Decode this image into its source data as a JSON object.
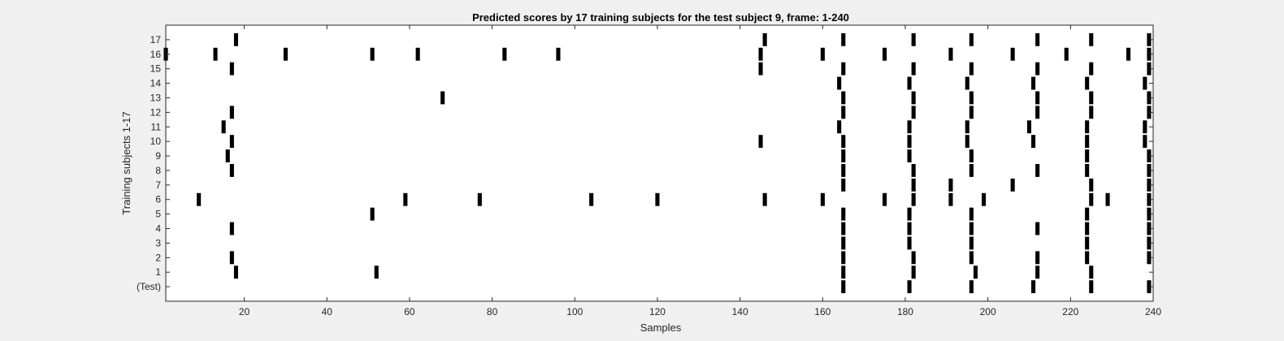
{
  "chart_data": {
    "type": "heatmap",
    "title": "Predicted scores by 17 training subjects for the test subject 9, frame: 1-240",
    "xlabel": "Samples",
    "ylabel": "Training subjects 1-17",
    "xlim": [
      1,
      240
    ],
    "xticks": [
      20,
      40,
      60,
      80,
      100,
      120,
      140,
      160,
      180,
      200,
      220,
      240
    ],
    "ytick_labels": [
      "(Test)",
      "1",
      "2",
      "3",
      "4",
      "5",
      "6",
      "7",
      "8",
      "9",
      "10",
      "11",
      "12",
      "13",
      "14",
      "15",
      "16",
      "17"
    ],
    "grid": false,
    "colormap": {
      "marked": "#000000",
      "unmarked": "#ffffff"
    },
    "rows": [
      {
        "label": "(Test)",
        "samples": [
          165,
          181,
          196,
          211,
          225,
          239
        ]
      },
      {
        "label": "1",
        "samples": [
          18,
          52,
          165,
          182,
          197,
          212,
          225
        ]
      },
      {
        "label": "2",
        "samples": [
          17,
          165,
          182,
          196,
          212,
          224,
          239
        ]
      },
      {
        "label": "3",
        "samples": [
          165,
          181,
          196,
          224,
          239
        ]
      },
      {
        "label": "4",
        "samples": [
          17,
          165,
          181,
          196,
          212,
          224,
          239
        ]
      },
      {
        "label": "5",
        "samples": [
          51,
          165,
          181,
          196,
          224,
          239
        ]
      },
      {
        "label": "6",
        "samples": [
          9,
          59,
          77,
          104,
          120,
          146,
          160,
          175,
          182,
          191,
          199,
          225,
          229,
          239
        ]
      },
      {
        "label": "7",
        "samples": [
          165,
          182,
          191,
          206,
          225,
          239
        ]
      },
      {
        "label": "8",
        "samples": [
          17,
          165,
          182,
          196,
          212,
          224,
          239
        ]
      },
      {
        "label": "9",
        "samples": [
          16,
          165,
          181,
          196,
          224,
          239
        ]
      },
      {
        "label": "10",
        "samples": [
          17,
          145,
          165,
          181,
          195,
          211,
          224,
          238
        ]
      },
      {
        "label": "11",
        "samples": [
          15,
          164,
          181,
          195,
          210,
          224,
          238
        ]
      },
      {
        "label": "12",
        "samples": [
          17,
          165,
          182,
          196,
          212,
          225,
          239
        ]
      },
      {
        "label": "13",
        "samples": [
          68,
          165,
          182,
          196,
          212,
          225,
          239
        ]
      },
      {
        "label": "14",
        "samples": [
          164,
          181,
          195,
          211,
          224,
          238
        ]
      },
      {
        "label": "15",
        "samples": [
          17,
          145,
          165,
          182,
          196,
          212,
          225,
          239
        ]
      },
      {
        "label": "16",
        "samples": [
          1,
          13,
          30,
          51,
          62,
          83,
          96,
          145,
          160,
          175,
          191,
          206,
          219,
          234,
          239
        ]
      },
      {
        "label": "17",
        "samples": [
          18,
          146,
          165,
          182,
          196,
          212,
          225,
          239
        ]
      }
    ]
  }
}
